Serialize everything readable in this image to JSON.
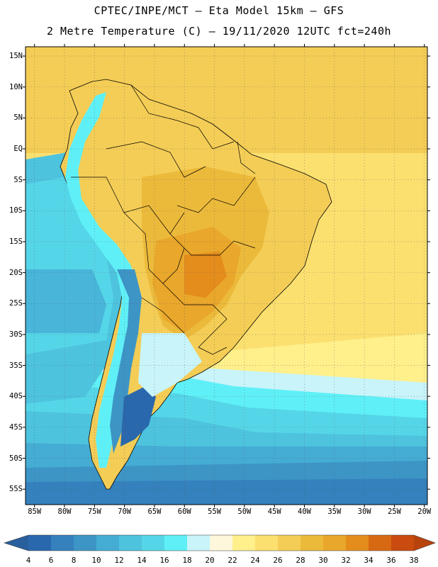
{
  "title": {
    "line1": "CPTEC/INPE/MCT –  Eta Model 15km – GFS",
    "line2": "2 Metre Temperature (C) – 19/11/2020 12UTC fct=240h"
  },
  "map": {
    "lat_labels": [
      "15N",
      "10N",
      "5N",
      "EQ",
      "5S",
      "10S",
      "15S",
      "20S",
      "25S",
      "30S",
      "35S",
      "40S",
      "45S",
      "50S",
      "55S"
    ],
    "lat_values": [
      15,
      10,
      5,
      0,
      -5,
      -10,
      -15,
      -20,
      -25,
      -30,
      -35,
      -40,
      -45,
      -50,
      -55
    ],
    "lon_labels": [
      "85W",
      "80W",
      "75W",
      "70W",
      "65W",
      "60W",
      "55W",
      "50W",
      "45W",
      "40W",
      "35W",
      "30W",
      "25W",
      "20W"
    ],
    "lon_values": [
      -85,
      -80,
      -75,
      -70,
      -65,
      -60,
      -55,
      -50,
      -45,
      -40,
      -35,
      -30,
      -25,
      -20
    ],
    "lat_range": [
      -57.5,
      16.5
    ],
    "lon_range": [
      -86.5,
      -19.5
    ]
  },
  "colorbar": {
    "labels": [
      "4",
      "6",
      "8",
      "10",
      "12",
      "14",
      "16",
      "18",
      "20",
      "22",
      "24",
      "26",
      "28",
      "30",
      "32",
      "34",
      "36",
      "38"
    ],
    "colors": [
      "#2a68ad",
      "#3481bd",
      "#3d95c6",
      "#45acd4",
      "#4ec3de",
      "#55d6e8",
      "#5ff0f7",
      "#c8f4fa",
      "#fff7dc",
      "#fff08c",
      "#fbe070",
      "#f4cd56",
      "#ecba3b",
      "#e9a72b",
      "#e48c1c",
      "#d86913",
      "#c94b0f"
    ],
    "end_colors": [
      "#2a5f9e",
      "#b9430c"
    ]
  }
}
